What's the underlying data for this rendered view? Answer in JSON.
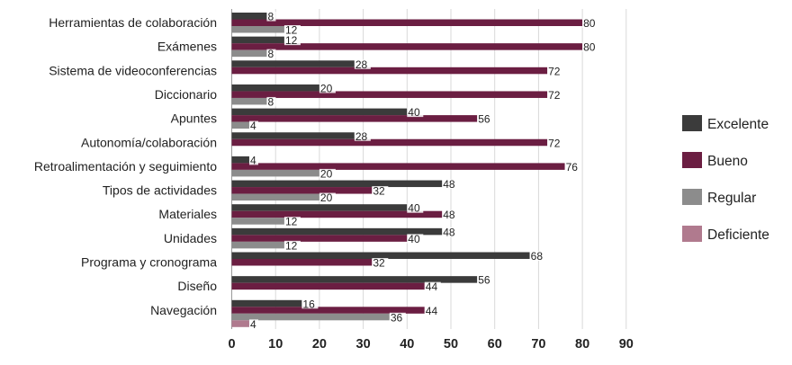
{
  "chart_data": {
    "type": "bar",
    "orientation": "horizontal",
    "categories": [
      "Herramientas de colaboración",
      "Exámenes",
      "Sistema de videoconferencias",
      "Diccionario",
      "Apuntes",
      "Autonomía/colaboración",
      "Retroalimentación y seguimiento",
      "Tipos de actividades",
      "Materiales",
      "Unidades",
      "Programa y cronograma",
      "Diseño",
      "Navegación"
    ],
    "series": [
      {
        "name": "Excelente",
        "color": "#3b3b3b",
        "values": [
          8,
          12,
          28,
          20,
          40,
          28,
          4,
          48,
          40,
          48,
          68,
          56,
          16
        ]
      },
      {
        "name": "Bueno",
        "color": "#6b1e42",
        "values": [
          80,
          80,
          72,
          72,
          56,
          72,
          76,
          32,
          48,
          40,
          32,
          44,
          44
        ]
      },
      {
        "name": "Regular",
        "color": "#8c8c8c",
        "values": [
          12,
          8,
          0,
          8,
          4,
          0,
          20,
          20,
          12,
          12,
          0,
          0,
          36
        ]
      },
      {
        "name": "Deficiente",
        "color": "#b07a8e",
        "values": [
          0,
          0,
          0,
          0,
          0,
          0,
          0,
          0,
          0,
          0,
          0,
          0,
          4
        ]
      }
    ],
    "xlim": [
      0,
      90
    ],
    "xticks": [
      0,
      10,
      20,
      30,
      40,
      50,
      60,
      70,
      80,
      90
    ],
    "grid": "vertical",
    "legend": "right"
  }
}
